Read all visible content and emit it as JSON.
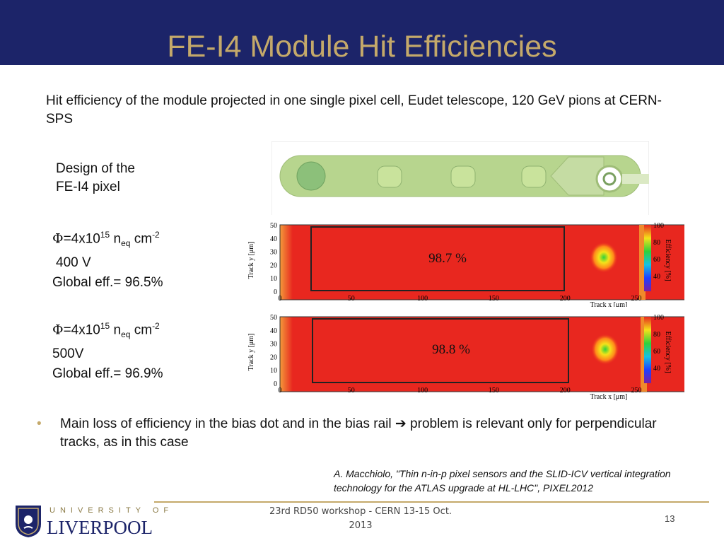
{
  "slide": {
    "title": "FE-I4 Module Hit Efficiencies",
    "intro": "Hit efficiency of the module projected in one single pixel cell, Eudet telescope, 120 GeV pions at CERN-SPS",
    "design_label_line1": "Design of the",
    "design_label_line2": "FE-I4 pixel"
  },
  "conditions": [
    {
      "phi": "Φ",
      "fluence": "=4x10",
      "exp": "15",
      "n": " n",
      "sub": "eq",
      "unit": " cm",
      "unit_exp": "-2",
      "voltage": "400 V",
      "eff": "Global eff.= 96.5%"
    },
    {
      "phi": "Φ",
      "fluence": "=4x10",
      "exp": "15",
      "n": " n",
      "sub": "eq",
      "unit": " cm",
      "unit_exp": "-2",
      "voltage": "500V",
      "eff": "Global eff.= 96.9%"
    }
  ],
  "maps": [
    {
      "label": "98.7 %",
      "ylabel": "Track y [μm]",
      "xlabel": "Track x [μm]",
      "zlabel": "Efficiency [%]",
      "xticks": [
        "0",
        "50",
        "100",
        "150",
        "200",
        "250"
      ],
      "yticks": [
        "50",
        "40",
        "30",
        "20",
        "10",
        "0"
      ],
      "zticks": [
        "100",
        "80",
        "60",
        "40"
      ]
    },
    {
      "label": "98.8 %",
      "ylabel": "Track y [μm]",
      "xlabel": "Track x [μm]",
      "zlabel": "Efficiency [%]",
      "xticks": [
        "0",
        "50",
        "100",
        "150",
        "200",
        "250"
      ],
      "yticks": [
        "50",
        "40",
        "30",
        "20",
        "10",
        "0"
      ],
      "zticks": [
        "100",
        "80",
        "60",
        "40"
      ]
    }
  ],
  "bullet": {
    "marker": "•",
    "text": "Main loss of efficiency in the bias dot and in the bias rail ➔ problem is relevant only for perpendicular tracks, as in this case"
  },
  "reference": "A. Macchiolo, \"Thin n-in-p pixel sensors and the SLID-ICV vertical integration technology for the ATLAS upgrade at HL-LHC\", PIXEL2012",
  "footer": {
    "university_line": "UNIVERSITY OF",
    "university_name": "LIVERPOOL",
    "event_line1": "23rd RD50 workshop - CERN 13-15 Oct.",
    "event_line2": "2013",
    "page": "13"
  },
  "colors": {
    "header_bg": "#1c2469",
    "title": "#c4a96a",
    "map_red": "#e8271f",
    "pixel_green": "#b7d58e"
  }
}
